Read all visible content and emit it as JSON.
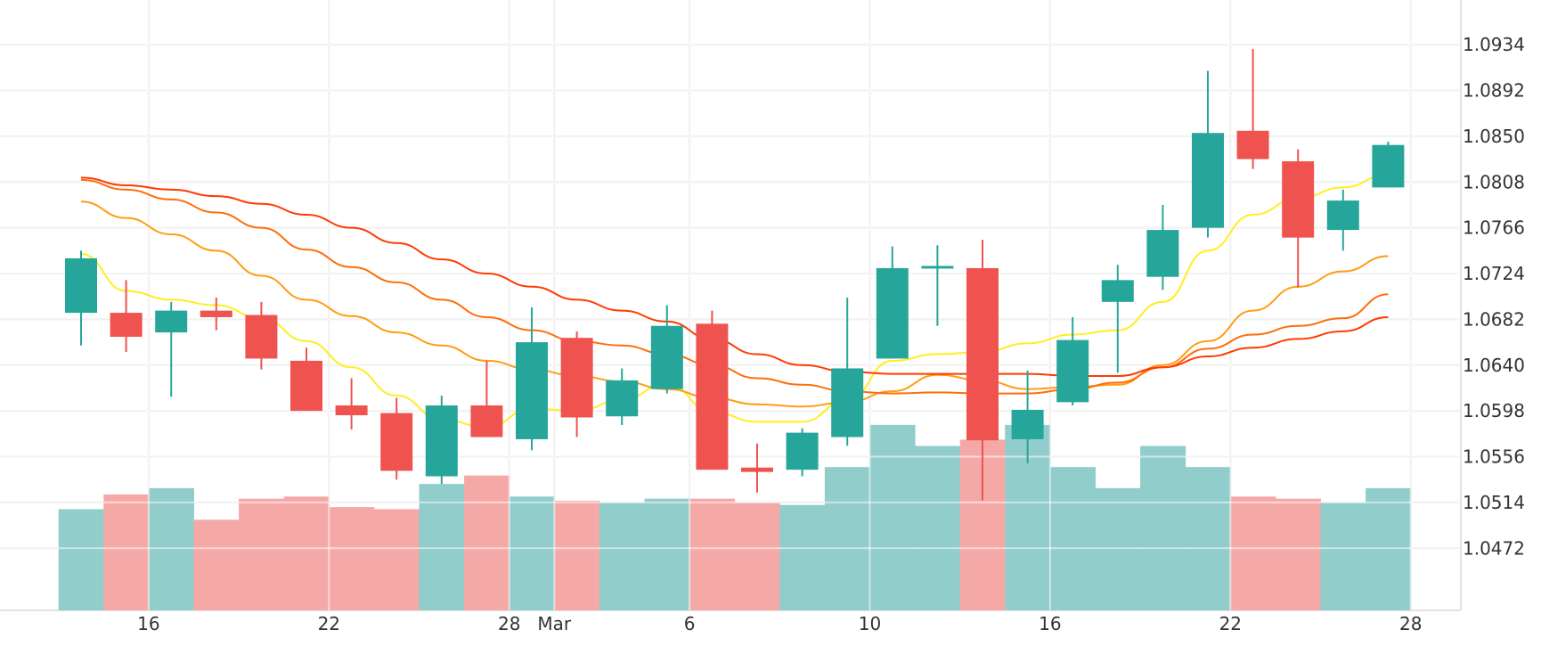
{
  "chart_data": {
    "type": "candlestick",
    "title": "",
    "xlabel": "",
    "ylabel": "",
    "grid": true,
    "colors": {
      "up": "#26a69a",
      "down": "#ef5350",
      "volume_up": "#91cdcb",
      "volume_down": "#f5a9a7",
      "grid": "#e2e2e2",
      "ma_lines": [
        "#ffee22",
        "#ffc21a",
        "#ff9d12",
        "#ff6e0a",
        "#ff3b00"
      ]
    },
    "y_ticks": [
      "1.0934",
      "1.0892",
      "1.0850",
      "1.0808",
      "1.0766",
      "1.0724",
      "1.0682",
      "1.0640",
      "1.0598",
      "1.0556",
      "1.0514",
      "1.0472"
    ],
    "ylim": [
      1.0415,
      1.0975
    ],
    "x_ticks": [
      {
        "label": "16",
        "index": 1.5
      },
      {
        "label": "22",
        "index": 5.5
      },
      {
        "label": "28",
        "index": 9.5
      },
      {
        "label": "Mar",
        "index": 10.5
      },
      {
        "label": "6",
        "index": 13.5
      },
      {
        "label": "10",
        "index": 17.5
      },
      {
        "label": "16",
        "index": 21.5
      },
      {
        "label": "22",
        "index": 25.5
      },
      {
        "label": "28",
        "index": 29.5
      }
    ],
    "candles": [
      {
        "o": 1.0688,
        "h": 1.0745,
        "l": 1.0658,
        "c": 1.0738
      },
      {
        "o": 1.0688,
        "h": 1.0718,
        "l": 1.0652,
        "c": 1.0666
      },
      {
        "o": 1.067,
        "h": 1.0698,
        "l": 1.0611,
        "c": 1.069
      },
      {
        "o": 1.069,
        "h": 1.0702,
        "l": 1.0672,
        "c": 1.0684
      },
      {
        "o": 1.0686,
        "h": 1.0698,
        "l": 1.0636,
        "c": 1.0646
      },
      {
        "o": 1.0644,
        "h": 1.0656,
        "l": 1.0598,
        "c": 1.0598
      },
      {
        "o": 1.0603,
        "h": 1.0628,
        "l": 1.0581,
        "c": 1.0594
      },
      {
        "o": 1.0596,
        "h": 1.061,
        "l": 1.0535,
        "c": 1.0543
      },
      {
        "o": 1.0538,
        "h": 1.0612,
        "l": 1.0531,
        "c": 1.0603
      },
      {
        "o": 1.0603,
        "h": 1.0644,
        "l": 1.0574,
        "c": 1.0574
      },
      {
        "o": 1.0572,
        "h": 1.0693,
        "l": 1.0562,
        "c": 1.0661
      },
      {
        "o": 1.0665,
        "h": 1.0671,
        "l": 1.0574,
        "c": 1.0592
      },
      {
        "o": 1.0593,
        "h": 1.0637,
        "l": 1.0585,
        "c": 1.0626
      },
      {
        "o": 1.0618,
        "h": 1.0695,
        "l": 1.0614,
        "c": 1.0676
      },
      {
        "o": 1.0678,
        "h": 1.069,
        "l": 1.0544,
        "c": 1.0544
      },
      {
        "o": 1.0546,
        "h": 1.0568,
        "l": 1.0523,
        "c": 1.0542
      },
      {
        "o": 1.0544,
        "h": 1.0582,
        "l": 1.0538,
        "c": 1.0578
      },
      {
        "o": 1.0574,
        "h": 1.0702,
        "l": 1.0566,
        "c": 1.0637
      },
      {
        "o": 1.0646,
        "h": 1.0749,
        "l": 1.0646,
        "c": 1.0729
      },
      {
        "o": 1.0731,
        "h": 1.075,
        "l": 1.0676,
        "c": 1.0731
      },
      {
        "o": 1.0729,
        "h": 1.0755,
        "l": 1.0516,
        "c": 1.0571
      },
      {
        "o": 1.0572,
        "h": 1.0635,
        "l": 1.055,
        "c": 1.0599
      },
      {
        "o": 1.0606,
        "h": 1.0684,
        "l": 1.0603,
        "c": 1.0663
      },
      {
        "o": 1.0698,
        "h": 1.0732,
        "l": 1.0633,
        "c": 1.0718
      },
      {
        "o": 1.0721,
        "h": 1.0787,
        "l": 1.0709,
        "c": 1.0764
      },
      {
        "o": 1.0766,
        "h": 1.091,
        "l": 1.0757,
        "c": 1.0853
      },
      {
        "o": 1.0855,
        "h": 1.093,
        "l": 1.082,
        "c": 1.0829
      },
      {
        "o": 1.0827,
        "h": 1.0838,
        "l": 1.0711,
        "c": 1.0757
      },
      {
        "o": 1.0764,
        "h": 1.0801,
        "l": 1.0745,
        "c": 1.0791
      },
      {
        "o": 1.0803,
        "h": 1.0845,
        "l": 1.0803,
        "c": 1.0842
      }
    ],
    "volume": [
      0.48,
      0.55,
      0.58,
      0.43,
      0.53,
      0.54,
      0.49,
      0.48,
      0.6,
      0.64,
      0.54,
      0.52,
      0.51,
      0.53,
      0.53,
      0.51,
      0.5,
      0.68,
      0.88,
      0.78,
      0.81,
      0.88,
      0.68,
      0.58,
      0.78,
      0.68,
      0.54,
      0.53,
      0.51,
      0.58
    ],
    "volume_max": 1.1,
    "series": [
      {
        "values": [
          1.0742,
          1.0708,
          1.07,
          1.0695,
          1.0683,
          1.0662,
          1.0638,
          1.0612,
          1.059,
          1.0583,
          1.06,
          1.0598,
          1.0608,
          1.0623,
          1.0597,
          1.0588,
          1.0588,
          1.0608,
          1.0644,
          1.065,
          1.0652,
          1.066,
          1.0668,
          1.0672,
          1.0698,
          1.0745,
          1.0778,
          1.0793,
          1.0803,
          1.0815
        ]
      },
      {
        "values": null
      },
      {
        "values": [
          1.079,
          1.0775,
          1.076,
          1.0745,
          1.0722,
          1.07,
          1.0685,
          1.067,
          1.0658,
          1.0644,
          1.0636,
          1.063,
          1.0625,
          1.0618,
          1.061,
          1.0604,
          1.0602,
          1.0606,
          1.0616,
          1.0631,
          1.0626,
          1.0618,
          1.062,
          1.0622,
          1.064,
          1.0662,
          1.069,
          1.0712,
          1.0726,
          1.074
        ]
      },
      {
        "values": [
          1.081,
          1.0801,
          1.0792,
          1.078,
          1.0766,
          1.0746,
          1.073,
          1.0716,
          1.07,
          1.0684,
          1.0672,
          1.0662,
          1.0658,
          1.065,
          1.064,
          1.0628,
          1.0622,
          1.0616,
          1.0614,
          1.0615,
          1.0614,
          1.0614,
          1.0618,
          1.0624,
          1.0638,
          1.0655,
          1.0668,
          1.0676,
          1.0683,
          1.0705
        ]
      },
      {
        "values": [
          1.0812,
          1.0805,
          1.0801,
          1.0795,
          1.0788,
          1.0778,
          1.0766,
          1.0752,
          1.0737,
          1.0724,
          1.0712,
          1.07,
          1.069,
          1.068,
          1.0664,
          1.065,
          1.064,
          1.0634,
          1.0632,
          1.0632,
          1.0632,
          1.0632,
          1.063,
          1.063,
          1.0638,
          1.0648,
          1.0656,
          1.0664,
          1.0671,
          1.0684
        ]
      }
    ]
  }
}
